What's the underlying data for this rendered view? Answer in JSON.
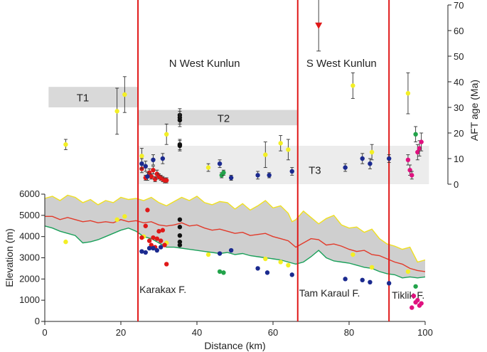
{
  "chart_data": {
    "type": "scatter",
    "xlabel": "Distance (km)",
    "ylabel_left": "Elevation (m)",
    "ylabel_right": "AFT age (Ma)",
    "xlim": [
      0,
      100
    ],
    "ylim_elev": [
      0,
      6000
    ],
    "ylim_age": [
      0,
      70
    ],
    "x_ticks": [
      0,
      20,
      40,
      60,
      80,
      100
    ],
    "elev_ticks": [
      0,
      1000,
      2000,
      3000,
      4000,
      5000,
      6000
    ],
    "age_ticks": [
      0,
      10,
      20,
      30,
      40,
      50,
      60,
      70
    ],
    "regions": [
      {
        "label": "N West Kunlun",
        "x": 42,
        "age": 58
      },
      {
        "label": "S West Kunlun",
        "x": 78,
        "age": 58
      }
    ],
    "faults": [
      {
        "label": "Karakax F.",
        "x": 24.5
      },
      {
        "label": "Tam Karaul F.",
        "x": 66.5
      },
      {
        "label": "Tiklik F.",
        "x": 90.5
      }
    ],
    "age_bands": [
      {
        "label": "T1",
        "x0": 1,
        "x1": 24.5,
        "age0": 30,
        "age1": 38
      },
      {
        "label": "T2",
        "x0": 24.5,
        "x1": 66.5,
        "age0": 23,
        "age1": 29
      },
      {
        "label": "T3",
        "x0": 24.5,
        "x1": 101,
        "age0": 0,
        "age1": 15
      }
    ],
    "elevation_profiles": [
      {
        "name": "max elevation",
        "color": "#f0e020",
        "x": [
          0,
          2,
          4,
          6,
          8,
          10,
          12,
          14,
          16,
          18,
          20,
          22,
          24,
          26,
          28,
          30,
          32,
          34,
          36,
          38,
          40,
          42,
          44,
          46,
          48,
          50,
          52,
          54,
          56,
          58,
          60,
          62,
          64,
          65,
          66,
          68,
          70,
          72,
          74,
          76,
          78,
          80,
          82,
          84,
          86,
          88,
          90,
          92,
          94,
          96,
          98,
          100
        ],
        "y": [
          5800,
          5900,
          5700,
          5950,
          5850,
          5600,
          5750,
          5500,
          5700,
          5600,
          5850,
          5750,
          5800,
          5700,
          5850,
          5600,
          5450,
          5650,
          5850,
          5700,
          5900,
          5600,
          5500,
          5650,
          5600,
          5300,
          5550,
          5250,
          5450,
          5700,
          5350,
          5450,
          5100,
          4700,
          4800,
          5200,
          4900,
          4600,
          4850,
          5000,
          4550,
          4400,
          4450,
          4200,
          4350,
          3900,
          3650,
          3550,
          3400,
          3500,
          2800,
          2900
        ]
      },
      {
        "name": "mean elevation",
        "color": "#e23a2a",
        "x": [
          0,
          2,
          4,
          6,
          8,
          10,
          12,
          14,
          16,
          18,
          20,
          22,
          24,
          26,
          28,
          30,
          32,
          34,
          36,
          38,
          40,
          42,
          44,
          46,
          48,
          50,
          52,
          54,
          56,
          58,
          60,
          62,
          64,
          66,
          68,
          70,
          72,
          74,
          76,
          78,
          80,
          82,
          84,
          86,
          88,
          90,
          92,
          94,
          96,
          98,
          100
        ],
        "y": [
          4950,
          4950,
          4800,
          4900,
          4800,
          4700,
          4750,
          4650,
          4700,
          4650,
          4800,
          4700,
          4750,
          4650,
          4700,
          4550,
          4500,
          4550,
          4650,
          4500,
          4550,
          4400,
          4300,
          4350,
          4250,
          4150,
          4200,
          4050,
          4100,
          4150,
          4000,
          3900,
          3800,
          3500,
          3700,
          3900,
          3850,
          3600,
          3650,
          3550,
          3400,
          3300,
          3350,
          3150,
          3100,
          2950,
          2800,
          2700,
          2500,
          2400,
          2350
        ]
      },
      {
        "name": "min elevation",
        "color": "#1aa05a",
        "x": [
          0,
          2,
          4,
          6,
          8,
          10,
          12,
          14,
          16,
          18,
          20,
          22,
          24,
          26,
          28,
          30,
          32,
          34,
          36,
          38,
          40,
          42,
          44,
          46,
          48,
          50,
          52,
          54,
          56,
          58,
          60,
          62,
          64,
          66,
          68,
          70,
          72,
          74,
          76,
          78,
          80,
          82,
          84,
          86,
          88,
          90,
          92,
          94,
          96,
          98,
          100
        ],
        "y": [
          4500,
          4400,
          4250,
          4150,
          4050,
          3700,
          3750,
          3850,
          4000,
          4150,
          4300,
          4400,
          4250,
          4000,
          3900,
          3700,
          3500,
          3500,
          3450,
          3400,
          3350,
          3300,
          3250,
          3200,
          3250,
          3150,
          3200,
          3100,
          3050,
          3000,
          2950,
          2900,
          2800,
          2700,
          2800,
          3050,
          3350,
          3000,
          2850,
          2800,
          2750,
          2650,
          2550,
          2500,
          2350,
          2250,
          2200,
          2050,
          2100,
          2050,
          2100
        ]
      }
    ],
    "elevation_samples": [
      {
        "x": 5.5,
        "y": 3750,
        "color": "#f3ef25"
      },
      {
        "x": 19,
        "y": 4800,
        "color": "#f3ef25"
      },
      {
        "x": 21,
        "y": 4950,
        "color": "#f3ef25"
      },
      {
        "x": 26,
        "y": 4000,
        "color": "#f3ef25"
      },
      {
        "x": 32,
        "y": 3700,
        "color": "#f3ef25"
      },
      {
        "x": 43,
        "y": 3150,
        "color": "#f3ef25"
      },
      {
        "x": 58,
        "y": 2950,
        "color": "#f3ef25"
      },
      {
        "x": 62,
        "y": 2800,
        "color": "#f3ef25"
      },
      {
        "x": 64,
        "y": 2650,
        "color": "#f3ef25"
      },
      {
        "x": 81,
        "y": 3150,
        "color": "#f3ef25"
      },
      {
        "x": 86,
        "y": 2550,
        "color": "#f3ef25"
      },
      {
        "x": 95.5,
        "y": 2350,
        "color": "#f3ef25"
      },
      {
        "x": 25.5,
        "y": 3950,
        "color": "#e01818"
      },
      {
        "x": 27,
        "y": 5250,
        "color": "#e01818"
      },
      {
        "x": 26.5,
        "y": 4500,
        "color": "#e01818"
      },
      {
        "x": 27.5,
        "y": 3800,
        "color": "#e01818"
      },
      {
        "x": 28,
        "y": 3600,
        "color": "#e01818"
      },
      {
        "x": 28.5,
        "y": 3950,
        "color": "#e01818"
      },
      {
        "x": 29,
        "y": 3500,
        "color": "#e01818"
      },
      {
        "x": 29.5,
        "y": 3900,
        "color": "#e01818"
      },
      {
        "x": 30,
        "y": 4250,
        "color": "#e01818"
      },
      {
        "x": 30.5,
        "y": 3800,
        "color": "#e01818"
      },
      {
        "x": 31,
        "y": 4300,
        "color": "#e01818"
      },
      {
        "x": 31.5,
        "y": 3600,
        "color": "#e01818"
      },
      {
        "x": 32,
        "y": 2700,
        "color": "#e01818"
      },
      {
        "x": 35.5,
        "y": 4800,
        "color": "#111111"
      },
      {
        "x": 35.5,
        "y": 4450,
        "color": "#111111"
      },
      {
        "x": 35.5,
        "y": 4050,
        "color": "#111111"
      },
      {
        "x": 35.5,
        "y": 3750,
        "color": "#111111"
      },
      {
        "x": 35.5,
        "y": 3600,
        "color": "#111111"
      },
      {
        "x": 25.5,
        "y": 3300,
        "color": "#1b2a8f"
      },
      {
        "x": 26.5,
        "y": 3250,
        "color": "#1b2a8f"
      },
      {
        "x": 27.5,
        "y": 3450,
        "color": "#1b2a8f"
      },
      {
        "x": 28.5,
        "y": 3450,
        "color": "#1b2a8f"
      },
      {
        "x": 29.5,
        "y": 3350,
        "color": "#1b2a8f"
      },
      {
        "x": 30.5,
        "y": 3500,
        "color": "#1b2a8f"
      },
      {
        "x": 46,
        "y": 3200,
        "color": "#1b2a8f"
      },
      {
        "x": 49,
        "y": 3350,
        "color": "#1b2a8f"
      },
      {
        "x": 56,
        "y": 2500,
        "color": "#1b2a8f"
      },
      {
        "x": 58.5,
        "y": 2300,
        "color": "#1b2a8f"
      },
      {
        "x": 65,
        "y": 2200,
        "color": "#1b2a8f"
      },
      {
        "x": 79,
        "y": 2000,
        "color": "#1b2a8f"
      },
      {
        "x": 83.5,
        "y": 1950,
        "color": "#1b2a8f"
      },
      {
        "x": 85.5,
        "y": 1850,
        "color": "#1b2a8f"
      },
      {
        "x": 90.5,
        "y": 1800,
        "color": "#1b2a8f"
      },
      {
        "x": 46,
        "y": 2350,
        "color": "#22a34a"
      },
      {
        "x": 47,
        "y": 2300,
        "color": "#22a34a"
      },
      {
        "x": 97.5,
        "y": 1650,
        "color": "#22a34a"
      },
      {
        "x": 97,
        "y": 1200,
        "color": "#e0117f"
      },
      {
        "x": 98,
        "y": 1000,
        "color": "#e0117f"
      },
      {
        "x": 98.5,
        "y": 750,
        "color": "#e0117f"
      },
      {
        "x": 99,
        "y": 850,
        "color": "#e0117f"
      },
      {
        "x": 97.5,
        "y": 900,
        "color": "#e0117f"
      },
      {
        "x": 96.5,
        "y": 650,
        "color": "#e0117f"
      }
    ],
    "age_samples": [
      {
        "x": 5.5,
        "age": 15.5,
        "err": 2,
        "color": "#f3ef25"
      },
      {
        "x": 19,
        "age": 28.5,
        "err": 9,
        "color": "#f3ef25"
      },
      {
        "x": 21,
        "age": 35,
        "err": 7,
        "color": "#f3ef25"
      },
      {
        "x": 25.5,
        "age": 11,
        "err": 3,
        "color": "#f3ef25"
      },
      {
        "x": 32,
        "age": 19.5,
        "err": 4,
        "color": "#f3ef25"
      },
      {
        "x": 43,
        "age": 6.5,
        "err": 1.5,
        "color": "#f3ef25"
      },
      {
        "x": 58,
        "age": 11.5,
        "err": 5,
        "color": "#f3ef25"
      },
      {
        "x": 62,
        "age": 16,
        "err": 3,
        "color": "#f3ef25"
      },
      {
        "x": 64,
        "age": 13.5,
        "err": 4,
        "color": "#f3ef25"
      },
      {
        "x": 81,
        "age": 38.5,
        "err": 5,
        "color": "#f3ef25"
      },
      {
        "x": 86,
        "age": 12.5,
        "err": 3,
        "color": "#f3ef25"
      },
      {
        "x": 95.5,
        "age": 35.5,
        "err": 8,
        "color": "#f3ef25"
      },
      {
        "x": 25.5,
        "age": 6,
        "err": 1.5,
        "color": "#e01818"
      },
      {
        "x": 26.5,
        "age": 2.5,
        "err": 1,
        "color": "#e01818"
      },
      {
        "x": 27.5,
        "age": 4.5,
        "err": 1.5,
        "color": "#e01818"
      },
      {
        "x": 28,
        "age": 3,
        "err": 1,
        "color": "#e01818"
      },
      {
        "x": 28.5,
        "age": 5.5,
        "err": 1.5,
        "color": "#e01818"
      },
      {
        "x": 29,
        "age": 2,
        "err": 1,
        "color": "#e01818"
      },
      {
        "x": 29.5,
        "age": 4,
        "err": 1.5,
        "color": "#e01818"
      },
      {
        "x": 30,
        "age": 3,
        "err": 1,
        "color": "#e01818"
      },
      {
        "x": 30.5,
        "age": 2.5,
        "err": 1,
        "color": "#e01818"
      },
      {
        "x": 31,
        "age": 2,
        "err": 1,
        "color": "#e01818"
      },
      {
        "x": 31.5,
        "age": 1.5,
        "err": 1,
        "color": "#e01818"
      },
      {
        "x": 32,
        "age": 1.5,
        "err": 1,
        "color": "#e01818"
      },
      {
        "x": 35.5,
        "age": 27,
        "err": 2.5,
        "color": "#111111"
      },
      {
        "x": 35.5,
        "age": 26,
        "err": 2.5,
        "color": "#111111"
      },
      {
        "x": 35.5,
        "age": 25,
        "err": 2.5,
        "color": "#111111"
      },
      {
        "x": 35.5,
        "age": 15.5,
        "err": 2,
        "color": "#111111"
      },
      {
        "x": 35.5,
        "age": 15,
        "err": 2,
        "color": "#111111"
      },
      {
        "x": 25.5,
        "age": 8,
        "err": 2,
        "color": "#1b2a8f"
      },
      {
        "x": 26.5,
        "age": 7,
        "err": 2,
        "color": "#1b2a8f"
      },
      {
        "x": 27,
        "age": 3,
        "err": 1.5,
        "color": "#1b2a8f"
      },
      {
        "x": 28.5,
        "age": 9.5,
        "err": 2,
        "color": "#1b2a8f"
      },
      {
        "x": 31,
        "age": 10,
        "err": 2,
        "color": "#1b2a8f"
      },
      {
        "x": 46,
        "age": 8,
        "err": 1.5,
        "color": "#1b2a8f"
      },
      {
        "x": 49,
        "age": 2.5,
        "err": 1,
        "color": "#1b2a8f"
      },
      {
        "x": 56,
        "age": 3.5,
        "err": 1.5,
        "color": "#1b2a8f"
      },
      {
        "x": 59,
        "age": 3.5,
        "err": 1,
        "color": "#1b2a8f"
      },
      {
        "x": 65,
        "age": 5,
        "err": 1.5,
        "color": "#1b2a8f"
      },
      {
        "x": 79,
        "age": 6.5,
        "err": 1.5,
        "color": "#1b2a8f"
      },
      {
        "x": 83.5,
        "age": 10,
        "err": 2,
        "color": "#1b2a8f"
      },
      {
        "x": 85.5,
        "age": 8,
        "err": 2,
        "color": "#1b2a8f"
      },
      {
        "x": 90.5,
        "age": 10,
        "err": 1.5,
        "color": "#1b2a8f"
      },
      {
        "x": 46.5,
        "age": 3.5,
        "err": 1,
        "color": "#22a34a"
      },
      {
        "x": 47,
        "age": 4.5,
        "err": 1,
        "color": "#22a34a"
      },
      {
        "x": 97.5,
        "age": 19.5,
        "err": 3,
        "color": "#22a34a"
      },
      {
        "x": 95.5,
        "age": 9.5,
        "err": 2,
        "color": "#e0117f"
      },
      {
        "x": 96,
        "age": 5.5,
        "err": 2,
        "color": "#e0117f"
      },
      {
        "x": 96.5,
        "age": 3.5,
        "err": 1.5,
        "color": "#e0117f"
      },
      {
        "x": 98,
        "age": 12.5,
        "err": 3,
        "color": "#e0117f"
      },
      {
        "x": 98.5,
        "age": 14,
        "err": 3,
        "color": "#e0117f"
      },
      {
        "x": 99,
        "age": 16.5,
        "err": 3.5,
        "color": "#e0117f"
      }
    ],
    "arrow_sample": {
      "x": 72,
      "age": 62,
      "err_low": 52,
      "err_high": 73,
      "color": "#e01818"
    }
  }
}
